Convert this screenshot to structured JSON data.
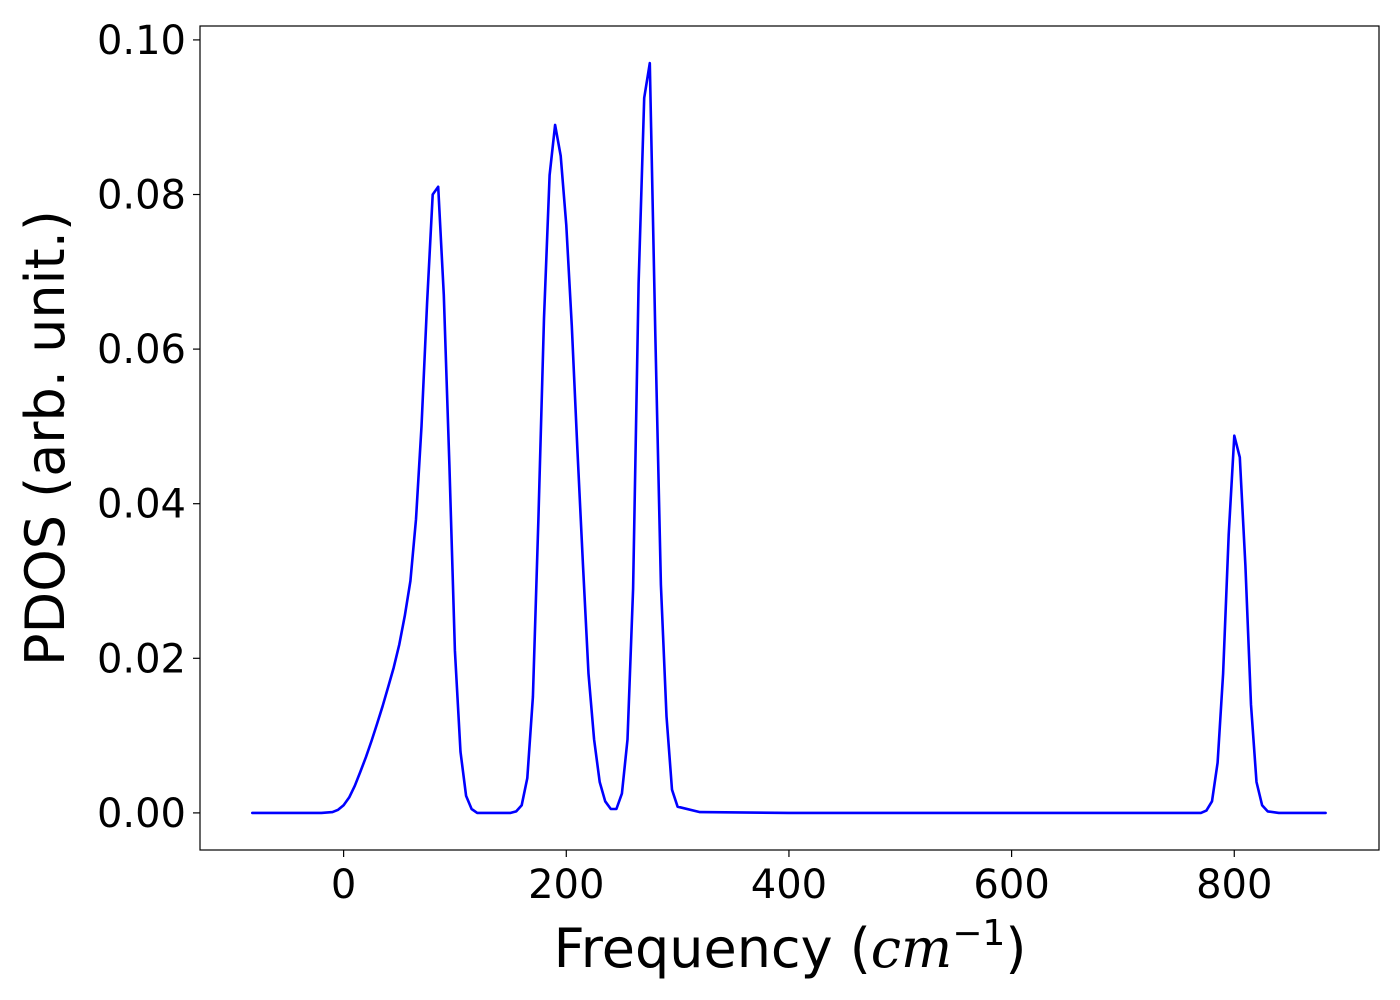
{
  "chart_data": {
    "type": "line",
    "title": "",
    "xlabel": {
      "prefix": "Frequency (",
      "math": "cm",
      "superscript": "−1",
      "suffix": ")"
    },
    "ylabel": "PDOS (arb. unit.)",
    "xlim": [
      -129,
      930
    ],
    "ylim": [
      -0.0048,
      0.1018
    ],
    "xticks": [
      0,
      200,
      400,
      600,
      800
    ],
    "xtick_labels": [
      "0",
      "200",
      "400",
      "600",
      "800"
    ],
    "yticks": [
      0.0,
      0.02,
      0.04,
      0.06,
      0.08,
      0.1
    ],
    "ytick_labels": [
      "0.00",
      "0.02",
      "0.04",
      "0.06",
      "0.08",
      "0.10"
    ],
    "grid": false,
    "legend": "none",
    "series": [
      {
        "color": "#0000ff",
        "x": [
          -82,
          -60,
          -40,
          -20,
          -10,
          -5,
          0,
          5,
          10,
          15,
          20,
          25,
          30,
          35,
          40,
          45,
          50,
          55,
          60,
          65,
          70,
          75,
          80,
          85,
          90,
          95,
          100,
          105,
          110,
          115,
          120,
          125,
          130,
          140,
          150,
          155,
          160,
          165,
          170,
          175,
          180,
          185,
          190,
          195,
          200,
          205,
          210,
          215,
          220,
          225,
          230,
          235,
          240,
          245,
          250,
          255,
          260,
          265,
          270,
          275,
          280,
          285,
          290,
          295,
          300,
          320,
          400,
          500,
          600,
          700,
          760,
          770,
          775,
          780,
          785,
          790,
          795,
          800,
          805,
          810,
          815,
          820,
          825,
          830,
          840,
          882
        ],
        "y": [
          0,
          0,
          0,
          0,
          0.0001,
          0.0004,
          0.001,
          0.002,
          0.0035,
          0.0053,
          0.0072,
          0.0093,
          0.0115,
          0.0138,
          0.0163,
          0.0188,
          0.0218,
          0.0255,
          0.03,
          0.038,
          0.05,
          0.066,
          0.08,
          0.081,
          0.067,
          0.045,
          0.021,
          0.0079,
          0.0022,
          0.0005,
          0,
          0,
          0,
          0,
          0,
          0.0002,
          0.001,
          0.0045,
          0.015,
          0.038,
          0.064,
          0.0825,
          0.089,
          0.085,
          0.076,
          0.063,
          0.047,
          0.032,
          0.018,
          0.0095,
          0.004,
          0.0015,
          0.0005,
          0.0005,
          0.0025,
          0.0095,
          0.029,
          0.0685,
          0.0925,
          0.097,
          0.062,
          0.0295,
          0.0125,
          0.003,
          0.0008,
          0.0001,
          0,
          0,
          0,
          0,
          0,
          0,
          0.0003,
          0.0015,
          0.0065,
          0.018,
          0.036,
          0.0488,
          0.046,
          0.032,
          0.014,
          0.004,
          0.001,
          0.0002,
          0,
          0
        ]
      }
    ]
  }
}
